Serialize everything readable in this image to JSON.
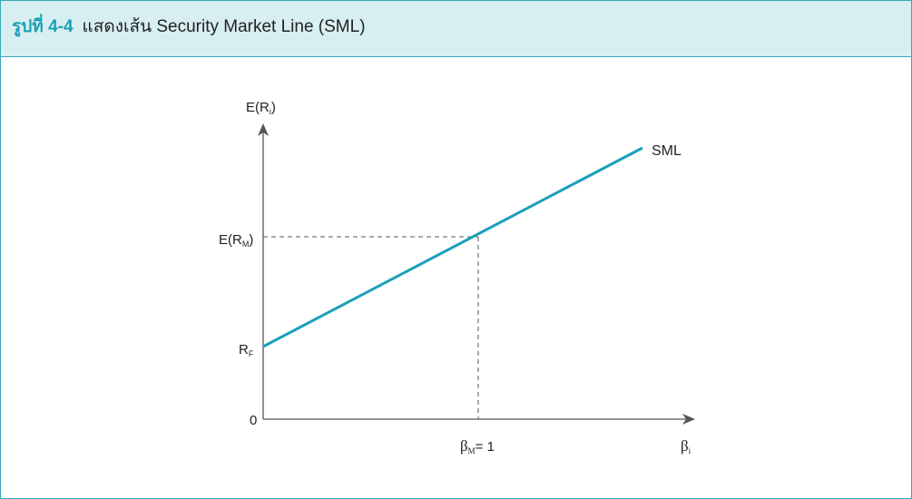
{
  "figure": {
    "label": "รูปที่ 4-4",
    "title": "แสดงเส้น Security Market Line (SML)"
  },
  "diagram": {
    "y_axis_label": {
      "main": "E(R",
      "sub": "i",
      "close": ")"
    },
    "x_axis_label": {
      "main": "β",
      "sub": "i"
    },
    "line_label": "SML",
    "y_ticks": {
      "expected_market": {
        "main": "E(R",
        "sub": "M",
        "close": ")"
      },
      "risk_free": {
        "main": "R",
        "sub": "F"
      },
      "origin": "0"
    },
    "x_ticks": {
      "market_beta": {
        "main": "β",
        "sub": "M",
        "rest": "= 1"
      }
    },
    "colors": {
      "accent": "#1aa0b8",
      "header_bg": "#d8eff2",
      "border": "#3aa7bd",
      "axis": "#555555"
    }
  }
}
